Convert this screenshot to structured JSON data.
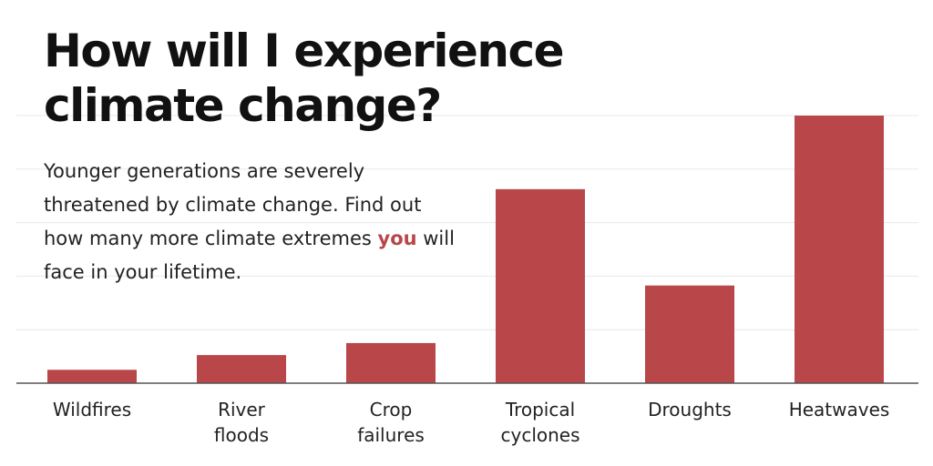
{
  "title_line1": "How will I experience",
  "title_line2": "climate change?",
  "subtitle": {
    "text_before": "Younger generations are severely threatened by climate change. Find out how many more climate extremes ",
    "highlight": "you",
    "text_after": " will face in your lifetime."
  },
  "colors": {
    "bar": "#b9474a",
    "grid": "#e8e8e8",
    "axis": "#555555",
    "highlight": "#b9474a"
  },
  "chart_data": {
    "type": "bar",
    "categories": [
      [
        "Wildfires"
      ],
      [
        "River",
        "floods"
      ],
      [
        "Crop",
        "failures"
      ],
      [
        "Tropical",
        "cyclones"
      ],
      [
        "Droughts"
      ],
      [
        "Heatwaves"
      ]
    ],
    "values": [
      0.05,
      0.105,
      0.15,
      0.725,
      0.365,
      1.0
    ],
    "ylim": [
      0,
      1.0
    ],
    "grid": true,
    "legend": "none"
  }
}
